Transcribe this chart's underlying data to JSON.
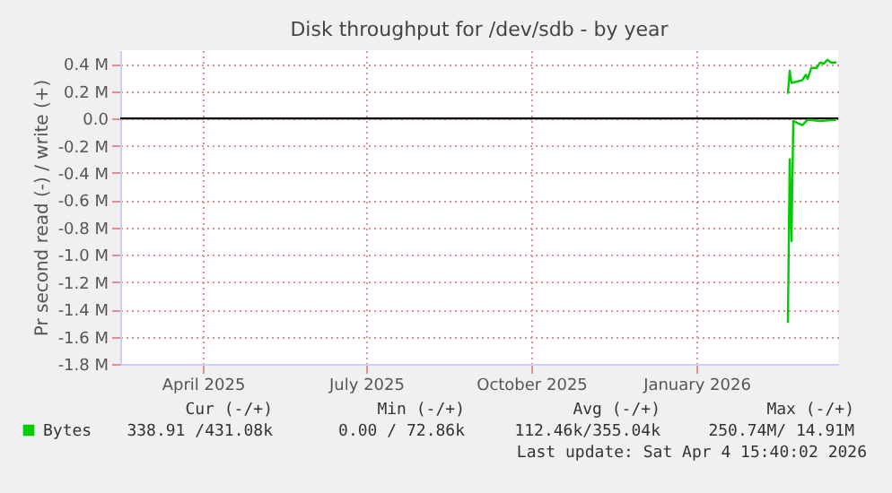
{
  "chart_data": {
    "type": "line",
    "title": "Disk throughput for /dev/sdb - by year",
    "ylabel": "Pr second read (-) / write (+)",
    "xlim": [
      "2025-02-28",
      "2026-04-04"
    ],
    "xticks": [
      {
        "value": "2025-04-15",
        "label": "April 2025"
      },
      {
        "value": "2025-07-15",
        "label": "July 2025"
      },
      {
        "value": "2025-10-15",
        "label": "October 2025"
      },
      {
        "value": "2026-01-15",
        "label": "January 2026"
      }
    ],
    "ylim": [
      -1800000,
      500000
    ],
    "yticks": [
      {
        "value": 400000,
        "label": "0.4 M"
      },
      {
        "value": 200000,
        "label": "0.2 M"
      },
      {
        "value": 0,
        "label": "0.0"
      },
      {
        "value": -200000,
        "label": "-0.2 M"
      },
      {
        "value": -400000,
        "label": "-0.4 M"
      },
      {
        "value": -600000,
        "label": "-0.6 M"
      },
      {
        "value": -800000,
        "label": "-0.8 M"
      },
      {
        "value": -1000000,
        "label": "-1.0 M"
      },
      {
        "value": -1200000,
        "label": "-1.2 M"
      },
      {
        "value": -1400000,
        "label": "-1.4 M"
      },
      {
        "value": -1600000,
        "label": "-1.6 M"
      },
      {
        "value": -1800000,
        "label": "-1.8 M"
      }
    ],
    "series": [
      {
        "name": "Bytes",
        "color": "#00cc00",
        "x": [
          "2026-03-07",
          "2026-03-08",
          "2026-03-09",
          "2026-03-12",
          "2026-03-15",
          "2026-03-17",
          "2026-03-18",
          "2026-03-20",
          "2026-03-23",
          "2026-03-25",
          "2026-03-27",
          "2026-03-29",
          "2026-03-31",
          "2026-04-03"
        ],
        "values": [
          180000,
          350000,
          260000,
          270000,
          280000,
          320000,
          290000,
          370000,
          370000,
          410000,
          400000,
          430000,
          410000,
          410000
        ]
      },
      {
        "color": "#00cc00",
        "x": [
          "2026-03-07",
          "2026-03-08",
          "2026-03-09",
          "2026-03-10",
          "2026-03-15",
          "2026-03-18",
          "2026-03-25",
          "2026-04-03"
        ],
        "values": [
          -1500000,
          -300000,
          -900000,
          -20000,
          -50000,
          -10000,
          -20000,
          -10000
        ]
      }
    ],
    "ref_lines": [
      {
        "axis": "y",
        "value": 0,
        "color": "#000000"
      }
    ],
    "grid": true,
    "legend": "bottom left",
    "annotations": [
      "Cur (-/+)",
      "Min (-/+)",
      "Avg (-/+)",
      "Max (-/+)",
      "338.91 /431.08k",
      "0.00 / 72.86k",
      "112.46k/355.04k",
      "250.74M/ 14.91M",
      "Last update: Sat Apr  4 15:40:02 2026"
    ]
  }
}
